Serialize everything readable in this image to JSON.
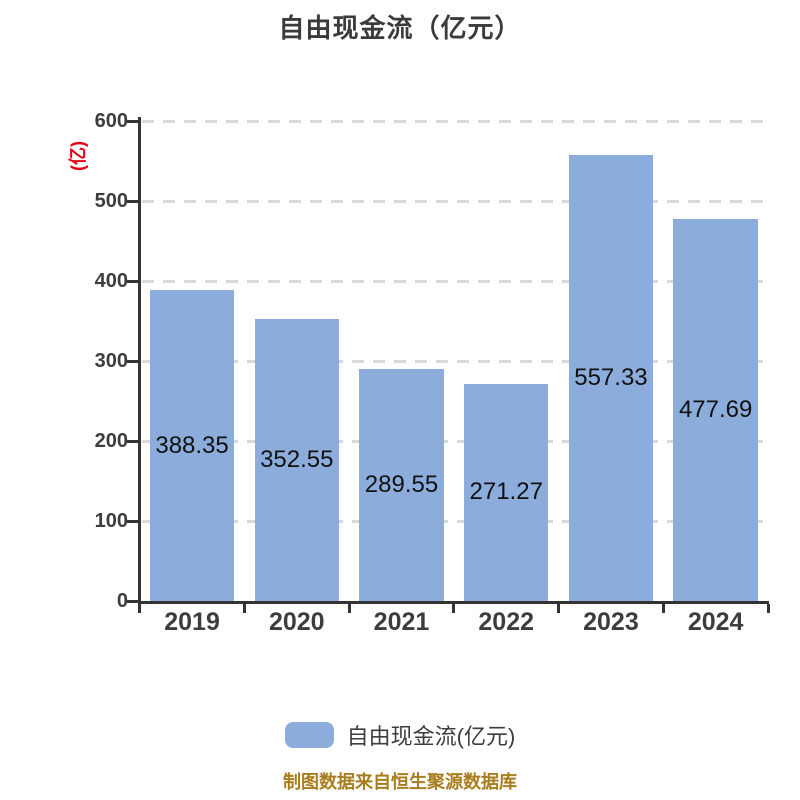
{
  "title": "自由现金流（亿元）",
  "unit_label": "(亿)",
  "legend": {
    "label": "自由现金流(亿元)"
  },
  "footer": "制图数据来自恒生聚源数据库",
  "colors": {
    "bar": "#8caddc",
    "axis": "#333333",
    "grid": "#d9d9d9",
    "title_text": "#3b3b3b",
    "tick_text": "#3d3d3d",
    "value_text": "#111111",
    "unit_text": "#e60012",
    "footer_text": "#a87d1e"
  },
  "chart_data": {
    "type": "bar",
    "categories": [
      "2019",
      "2020",
      "2021",
      "2022",
      "2023",
      "2024"
    ],
    "values": [
      388.35,
      352.55,
      289.55,
      271.27,
      557.33,
      477.69
    ],
    "title": "自由现金流（亿元）",
    "xlabel": "",
    "ylabel": "(亿)",
    "ylim": [
      0,
      600
    ],
    "yticks": [
      0,
      100,
      200,
      300,
      400,
      500,
      600
    ],
    "grid": "dashed-horizontal",
    "legend_entries": [
      "自由现金流(亿元)"
    ],
    "legend_position": "bottom",
    "value_labels": "inside-middle",
    "bar_color": "#8caddc"
  }
}
